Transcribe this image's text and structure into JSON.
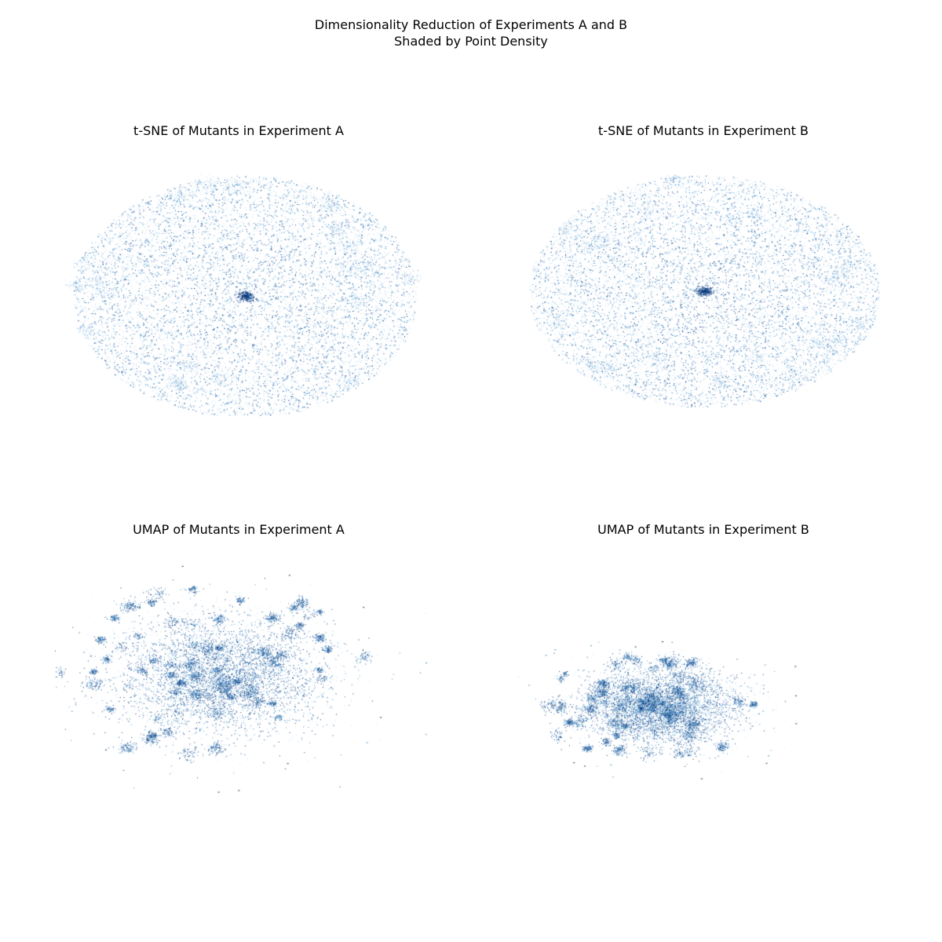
{
  "figure": {
    "title_line1": "Dimensionality Reduction of Experiments A and B",
    "title_line2": "Shaded by Point Density"
  },
  "colormap": {
    "name": "Blues",
    "light": "#c6dbef",
    "mid": "#4292c6",
    "dark": "#084594",
    "darkest": "#08306b"
  },
  "chart_data": [
    {
      "type": "scatter",
      "title": "t-SNE of Mutants in Experiment A",
      "xlabel": "",
      "ylabel": "",
      "axes_visible": false,
      "grid": false,
      "shading": "point density (Blues)",
      "description": "elliptical t-SNE cloud, roughly uniform density with a dense core near the center and small light clusters near the rim",
      "shape": "ellipse",
      "points": 9000,
      "scale": [
        0.49,
        0.51
      ]
    },
    {
      "type": "scatter",
      "title": "t-SNE of Mutants in Experiment B",
      "xlabel": "",
      "ylabel": "",
      "axes_visible": false,
      "grid": false,
      "shading": "point density (Blues)",
      "description": "elliptical t-SNE cloud, roughly uniform density with a dense core near the center and small light clusters near the rim",
      "shape": "ellipse",
      "points": 9000,
      "scale": [
        0.5,
        0.49
      ]
    },
    {
      "type": "scatter",
      "title": "UMAP of Mutants in Experiment A",
      "xlabel": "",
      "ylabel": "",
      "axes_visible": false,
      "grid": false,
      "shading": "point density (Blues)",
      "description": "UMAP embedding of many small tight clusters scattered around a denser central blob, with a few isolated outliers",
      "shape": "clusters",
      "points": 11000,
      "scale": [
        0.4,
        0.34
      ]
    },
    {
      "type": "scatter",
      "title": "UMAP of Mutants in Experiment B",
      "xlabel": "",
      "ylabel": "",
      "axes_visible": false,
      "grid": false,
      "shading": "point density (Blues)",
      "description": "UMAP embedding of many small tight clusters around a dense central blob offset toward lower-left, with sparse outliers to the upper right",
      "shape": "clusters",
      "points": 11000,
      "scale": [
        0.3,
        0.22
      ]
    }
  ]
}
